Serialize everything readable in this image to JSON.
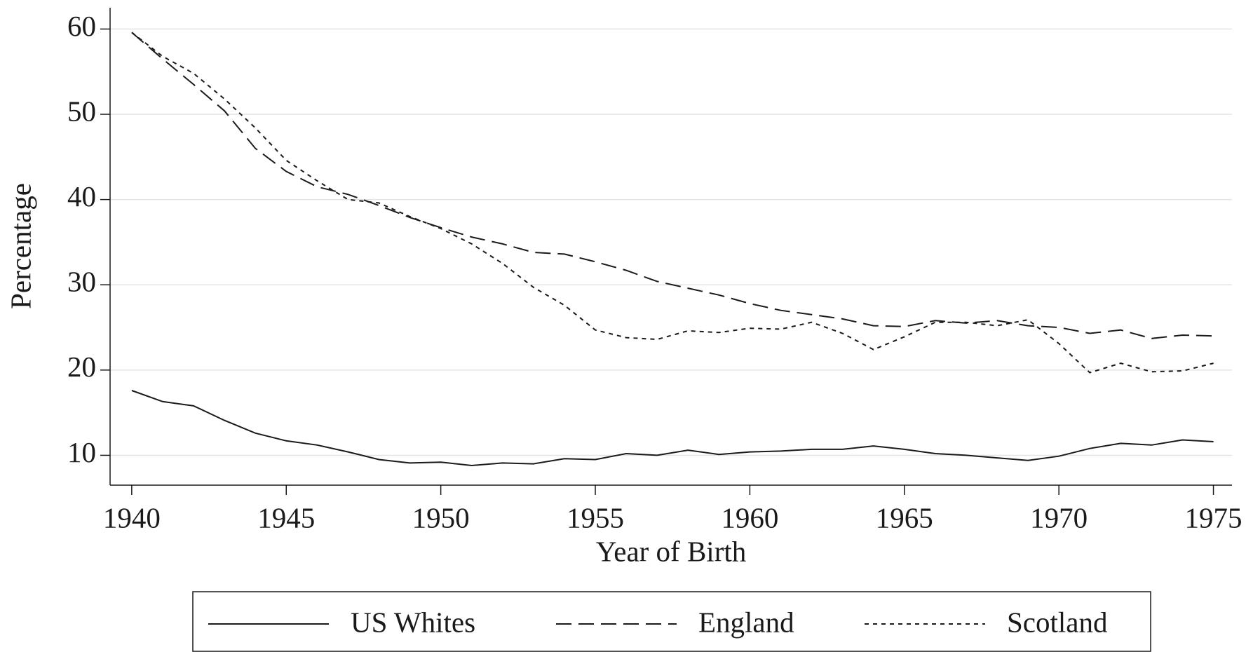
{
  "chart_data": {
    "type": "line",
    "x_label": "Year of Birth",
    "y_label": "Percentage",
    "x": [
      1940,
      1941,
      1942,
      1943,
      1944,
      1945,
      1946,
      1947,
      1948,
      1949,
      1950,
      1951,
      1952,
      1953,
      1954,
      1955,
      1956,
      1957,
      1958,
      1959,
      1960,
      1961,
      1962,
      1963,
      1964,
      1965,
      1966,
      1967,
      1968,
      1969,
      1970,
      1971,
      1972,
      1973,
      1974,
      1975
    ],
    "series": [
      {
        "name": "US Whites",
        "color": "#1a1a1a",
        "line_style": "solid",
        "values": [
          17.6,
          16.3,
          15.8,
          14.1,
          12.6,
          11.7,
          11.2,
          10.4,
          9.5,
          9.1,
          9.2,
          8.8,
          9.1,
          9.0,
          9.6,
          9.5,
          10.2,
          10.0,
          10.6,
          10.1,
          10.4,
          10.5,
          10.7,
          10.7,
          11.1,
          10.7,
          10.2,
          10.0,
          9.7,
          9.4,
          9.9,
          10.8,
          11.4,
          11.2,
          11.8,
          11.6
        ]
      },
      {
        "name": "England",
        "color": "#1a1a1a",
        "line_style": "dashed",
        "values": [
          59.6,
          56.5,
          53.5,
          50.4,
          46.0,
          43.3,
          41.5,
          40.6,
          39.3,
          37.9,
          36.7,
          35.6,
          34.8,
          33.8,
          33.6,
          32.7,
          31.7,
          30.4,
          29.6,
          28.8,
          27.8,
          27.0,
          26.5,
          26.0,
          25.2,
          25.1,
          25.8,
          25.5,
          25.8,
          25.2,
          25.0,
          24.3,
          24.7,
          23.7,
          24.1,
          24.0
        ]
      },
      {
        "name": "Scotland",
        "color": "#1a1a1a",
        "line_style": "dotted",
        "values": [
          59.6,
          56.8,
          54.8,
          51.8,
          48.4,
          44.6,
          42.2,
          40.0,
          39.6,
          38.0,
          36.6,
          34.8,
          32.5,
          29.7,
          27.6,
          24.7,
          23.8,
          23.6,
          24.6,
          24.4,
          24.9,
          24.8,
          25.6,
          24.3,
          22.4,
          23.9,
          25.6,
          25.6,
          25.2,
          25.9,
          23.1,
          19.7,
          20.8,
          19.8,
          19.9,
          20.8
        ]
      }
    ],
    "xlim": [
      1939.3,
      1975.6
    ],
    "xticks": [
      1940,
      1945,
      1950,
      1955,
      1960,
      1965,
      1970,
      1975
    ],
    "ylim": [
      6.5,
      62.5
    ],
    "yticks": [
      10,
      20,
      30,
      40,
      50,
      60
    ],
    "grid": true,
    "legend_position": "bottom"
  }
}
